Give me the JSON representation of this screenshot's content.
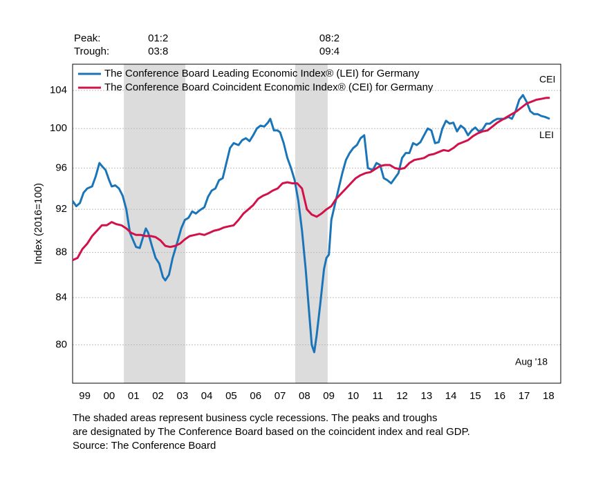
{
  "chart_data": {
    "type": "line",
    "y_label": "Index (2016=100)",
    "log_scale": true,
    "grid": true,
    "legend_position": "top-left",
    "xlim": [
      1999,
      2019
    ],
    "xticks": [
      {
        "value": 1999.5,
        "label": "99"
      },
      {
        "value": 2000.5,
        "label": "00"
      },
      {
        "value": 2001.5,
        "label": "01"
      },
      {
        "value": 2002.5,
        "label": "02"
      },
      {
        "value": 2003.5,
        "label": "03"
      },
      {
        "value": 2004.5,
        "label": "04"
      },
      {
        "value": 2005.5,
        "label": "05"
      },
      {
        "value": 2006.5,
        "label": "06"
      },
      {
        "value": 2007.5,
        "label": "07"
      },
      {
        "value": 2008.5,
        "label": "08"
      },
      {
        "value": 2009.5,
        "label": "09"
      },
      {
        "value": 2010.5,
        "label": "10"
      },
      {
        "value": 2011.5,
        "label": "11"
      },
      {
        "value": 2012.5,
        "label": "12"
      },
      {
        "value": 2013.5,
        "label": "13"
      },
      {
        "value": 2014.5,
        "label": "14"
      },
      {
        "value": 2015.5,
        "label": "15"
      },
      {
        "value": 2016.5,
        "label": "16"
      },
      {
        "value": 2017.5,
        "label": "17"
      },
      {
        "value": 2018.5,
        "label": "18"
      }
    ],
    "ylim": [
      76.9,
      106.85
    ],
    "yticks": [
      80,
      84,
      88,
      92,
      96,
      100,
      104
    ],
    "recessions": [
      [
        2001.1,
        2003.62
      ],
      [
        2008.12,
        2009.45
      ]
    ],
    "recession_color": "#dcdcdc",
    "peak_label": "Peak:",
    "trough_label": "Trough:",
    "peaks": [
      "01:2",
      "08:2"
    ],
    "troughs": [
      "03:8",
      "09:4"
    ],
    "date_note": "Aug '18",
    "footnotes": [
      "The shaded areas represent business cycle recessions. The peaks and troughs",
      "are designated by The Conference Board based on the coincident index and real GDP.",
      "Source: The Conference Board"
    ],
    "series": [
      {
        "name": "The Conference Board Leading Economic Index® (LEI) for Germany",
        "end_label": "LEI",
        "color": "#1a75b8",
        "x": [
          1999.0,
          1999.15,
          1999.3,
          1999.45,
          1999.6,
          1999.8,
          1999.95,
          2000.1,
          2000.2,
          2000.35,
          2000.5,
          2000.6,
          2000.75,
          2000.9,
          2001.05,
          2001.2,
          2001.35,
          2001.5,
          2001.6,
          2001.75,
          2001.9,
          2002.0,
          2002.1,
          2002.25,
          2002.4,
          2002.55,
          2002.7,
          2002.8,
          2002.95,
          2003.1,
          2003.3,
          2003.45,
          2003.6,
          2003.75,
          2003.9,
          2004.05,
          2004.2,
          2004.4,
          2004.55,
          2004.7,
          2004.85,
          2005.0,
          2005.15,
          2005.3,
          2005.45,
          2005.6,
          2005.8,
          2005.95,
          2006.1,
          2006.25,
          2006.4,
          2006.55,
          2006.7,
          2006.85,
          2007.0,
          2007.1,
          2007.25,
          2007.4,
          2007.5,
          2007.65,
          2007.8,
          2007.95,
          2008.1,
          2008.25,
          2008.4,
          2008.55,
          2008.7,
          2008.8,
          2008.9,
          2009.0,
          2009.15,
          2009.3,
          2009.4,
          2009.5,
          2009.6,
          2009.75,
          2009.9,
          2010.05,
          2010.2,
          2010.35,
          2010.5,
          2010.65,
          2010.8,
          2010.95,
          2011.1,
          2011.3,
          2011.45,
          2011.6,
          2011.75,
          2011.9,
          2012.05,
          2012.2,
          2012.35,
          2012.5,
          2012.65,
          2012.8,
          2012.95,
          2013.1,
          2013.25,
          2013.4,
          2013.55,
          2013.7,
          2013.85,
          2014.0,
          2014.15,
          2014.3,
          2014.45,
          2014.6,
          2014.75,
          2014.9,
          2015.05,
          2015.2,
          2015.35,
          2015.5,
          2015.65,
          2015.8,
          2015.95,
          2016.1,
          2016.25,
          2016.4,
          2016.55,
          2016.7,
          2016.85,
          2017.0,
          2017.15,
          2017.3,
          2017.45,
          2017.6,
          2017.75,
          2017.9,
          2018.05,
          2018.2,
          2018.35,
          2018.55
        ],
        "values": [
          92.8,
          92.3,
          92.6,
          93.6,
          94.0,
          94.2,
          95.2,
          96.5,
          96.2,
          95.8,
          94.8,
          94.2,
          94.3,
          94.0,
          93.3,
          92.0,
          89.8,
          89.0,
          88.5,
          88.4,
          89.5,
          90.2,
          89.8,
          88.6,
          87.5,
          87.0,
          85.8,
          85.5,
          86.0,
          87.5,
          89.0,
          90.2,
          91.0,
          91.2,
          91.8,
          91.6,
          91.9,
          92.2,
          93.2,
          93.8,
          94.0,
          94.8,
          95.0,
          96.5,
          98.0,
          98.5,
          98.3,
          98.8,
          99.0,
          98.7,
          99.3,
          100.0,
          100.3,
          100.2,
          100.6,
          101.0,
          99.8,
          99.8,
          99.6,
          98.5,
          97.0,
          96.0,
          94.8,
          92.8,
          90.0,
          86.5,
          82.5,
          80.0,
          79.4,
          80.8,
          83.5,
          86.5,
          87.5,
          87.8,
          91.0,
          92.5,
          94.0,
          95.5,
          96.8,
          97.5,
          98.0,
          98.3,
          99.0,
          99.3,
          96.0,
          95.8,
          96.5,
          96.3,
          95.0,
          94.8,
          94.5,
          95.0,
          95.5,
          97.0,
          97.5,
          97.5,
          98.5,
          98.3,
          98.6,
          99.3,
          100.0,
          99.8,
          98.5,
          98.6,
          100.0,
          100.8,
          100.5,
          100.6,
          99.7,
          100.3,
          100.0,
          99.3,
          99.8,
          100.1,
          99.7,
          99.9,
          100.5,
          100.5,
          100.8,
          101.0,
          101.0,
          101.0,
          101.2,
          101.0,
          101.8,
          103.0,
          103.5,
          102.8,
          101.8,
          101.5,
          101.5,
          101.3,
          101.2,
          101.0
        ]
      },
      {
        "name": "The Conference Board Coincident Economic Index® (CEI) for Germany",
        "end_label": "CEI",
        "color": "#d2114a",
        "x": [
          1999.0,
          1999.2,
          1999.4,
          1999.6,
          1999.8,
          2000.0,
          2000.2,
          2000.4,
          2000.6,
          2000.8,
          2001.0,
          2001.2,
          2001.4,
          2001.6,
          2001.8,
          2002.0,
          2002.2,
          2002.4,
          2002.6,
          2002.8,
          2003.0,
          2003.2,
          2003.4,
          2003.6,
          2003.8,
          2004.0,
          2004.2,
          2004.4,
          2004.6,
          2004.8,
          2005.0,
          2005.2,
          2005.4,
          2005.6,
          2005.8,
          2006.0,
          2006.2,
          2006.4,
          2006.6,
          2006.8,
          2007.0,
          2007.2,
          2007.4,
          2007.6,
          2007.8,
          2008.0,
          2008.2,
          2008.4,
          2008.5,
          2008.6,
          2008.8,
          2009.0,
          2009.2,
          2009.4,
          2009.6,
          2009.8,
          2010.0,
          2010.2,
          2010.4,
          2010.6,
          2010.8,
          2011.0,
          2011.2,
          2011.4,
          2011.6,
          2011.8,
          2012.0,
          2012.2,
          2012.4,
          2012.6,
          2012.8,
          2013.0,
          2013.2,
          2013.4,
          2013.6,
          2013.8,
          2014.0,
          2014.2,
          2014.4,
          2014.6,
          2014.8,
          2015.0,
          2015.2,
          2015.4,
          2015.6,
          2015.8,
          2016.0,
          2016.2,
          2016.4,
          2016.6,
          2016.8,
          2017.0,
          2017.2,
          2017.4,
          2017.6,
          2017.8,
          2018.0,
          2018.2,
          2018.4,
          2018.55
        ],
        "values": [
          87.3,
          87.5,
          88.3,
          88.8,
          89.5,
          90.0,
          90.5,
          90.5,
          90.8,
          90.6,
          90.5,
          90.2,
          89.8,
          89.6,
          89.6,
          89.5,
          89.5,
          89.4,
          89.1,
          88.6,
          88.5,
          88.6,
          88.8,
          89.2,
          89.5,
          89.6,
          89.7,
          89.6,
          89.8,
          90.0,
          90.1,
          90.3,
          90.4,
          90.5,
          91.0,
          91.6,
          92.0,
          92.4,
          93.0,
          93.3,
          93.5,
          93.8,
          94.0,
          94.5,
          94.6,
          94.5,
          94.5,
          94.0,
          93.0,
          92.0,
          91.5,
          91.3,
          91.6,
          92.0,
          92.3,
          93.0,
          93.5,
          94.0,
          94.5,
          95.0,
          95.3,
          95.5,
          95.6,
          95.9,
          96.2,
          96.3,
          96.3,
          96.0,
          95.9,
          96.0,
          96.5,
          96.8,
          96.9,
          97.0,
          97.3,
          97.4,
          97.6,
          97.8,
          97.7,
          98.0,
          98.4,
          98.6,
          98.8,
          99.2,
          99.5,
          99.7,
          99.8,
          100.2,
          100.6,
          100.9,
          101.2,
          101.5,
          101.8,
          102.2,
          102.6,
          102.8,
          103.0,
          103.1,
          103.2,
          103.2
        ]
      }
    ]
  }
}
